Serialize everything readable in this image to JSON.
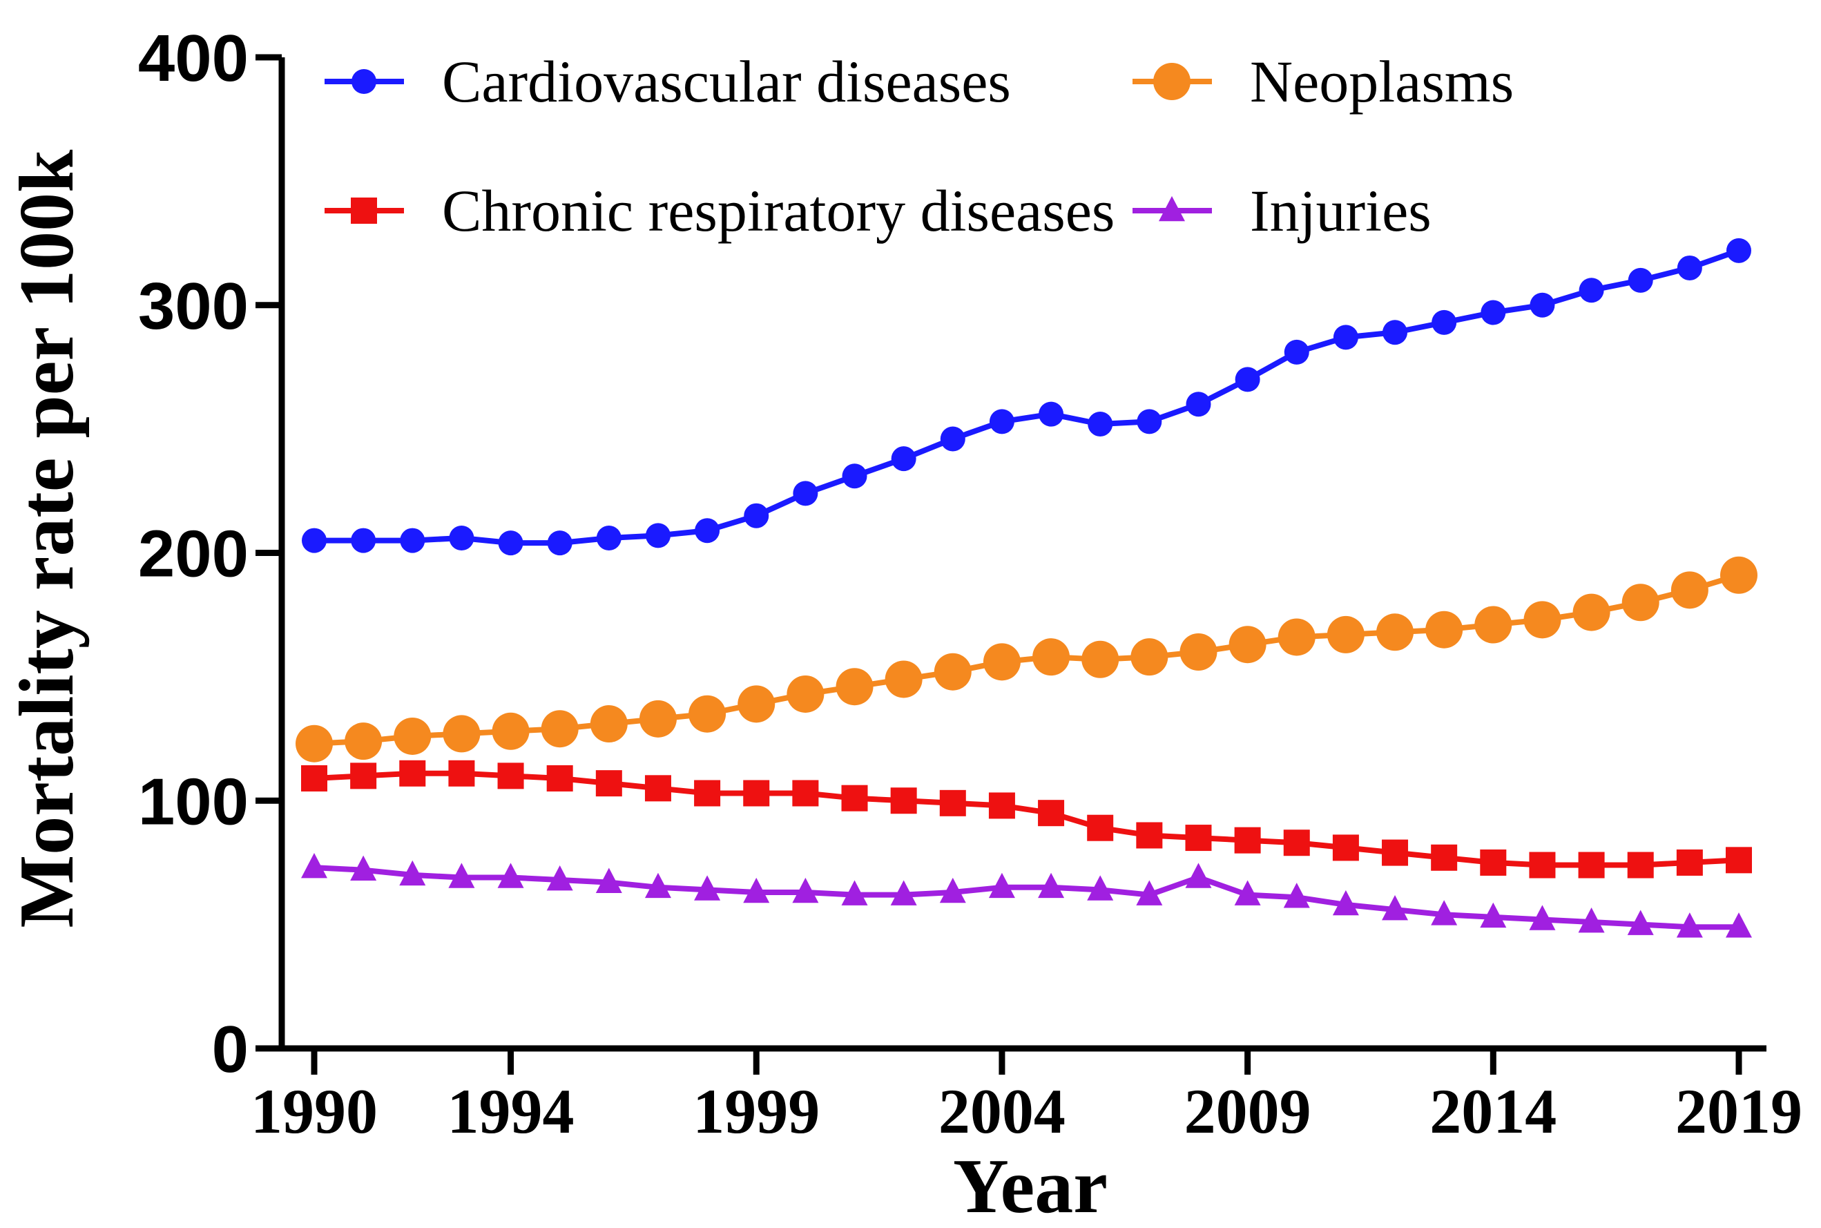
{
  "chart_data": {
    "type": "line",
    "title": "",
    "xlabel": "Year",
    "ylabel": "Mortality rate per 100k",
    "ylim": [
      0,
      400
    ],
    "yticks": [
      0,
      100,
      200,
      300,
      400
    ],
    "xlim": [
      1990,
      2019
    ],
    "xticks": [
      1990,
      1994,
      1999,
      2004,
      2009,
      2014,
      2019
    ],
    "legend_position": "top-left",
    "x": [
      1990,
      1991,
      1992,
      1993,
      1994,
      1995,
      1996,
      1997,
      1998,
      1999,
      2000,
      2001,
      2002,
      2003,
      2004,
      2005,
      2006,
      2007,
      2008,
      2009,
      2010,
      2011,
      2012,
      2013,
      2014,
      2015,
      2016,
      2017,
      2018,
      2019
    ],
    "series": [
      {
        "name": "Cardiovascular diseases",
        "color": "#1a1aff",
        "marker": "circle",
        "values": [
          205,
          205,
          205,
          206,
          204,
          204,
          206,
          207,
          209,
          215,
          224,
          231,
          238,
          246,
          253,
          256,
          252,
          253,
          260,
          270,
          281,
          287,
          289,
          293,
          297,
          300,
          306,
          310,
          315,
          322
        ]
      },
      {
        "name": "Neoplasms",
        "color": "#f5891f",
        "marker": "circle",
        "values": [
          123,
          124,
          126,
          127,
          128,
          129,
          131,
          133,
          135,
          139,
          143,
          146,
          149,
          152,
          156,
          158,
          157,
          158,
          160,
          163,
          166,
          167,
          168,
          169,
          171,
          173,
          176,
          180,
          185,
          191
        ]
      },
      {
        "name": "Chronic respiratory diseases",
        "color": "#ee1111",
        "marker": "square",
        "values": [
          109,
          110,
          111,
          111,
          110,
          109,
          107,
          105,
          103,
          103,
          103,
          101,
          100,
          99,
          98,
          95,
          89,
          86,
          85,
          84,
          83,
          81,
          79,
          77,
          75,
          74,
          74,
          74,
          75,
          76
        ]
      },
      {
        "name": "Injuries",
        "color": "#a020e0",
        "marker": "triangle",
        "values": [
          73,
          72,
          70,
          69,
          69,
          68,
          67,
          65,
          64,
          63,
          63,
          62,
          62,
          63,
          65,
          65,
          64,
          62,
          69,
          62,
          61,
          58,
          56,
          54,
          53,
          52,
          51,
          50,
          49,
          49
        ]
      }
    ]
  }
}
